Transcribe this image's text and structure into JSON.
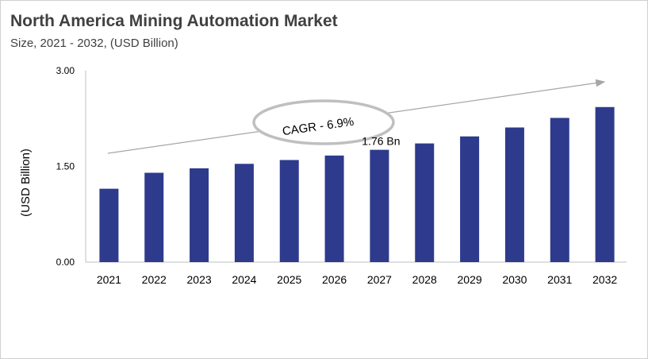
{
  "chart_data": {
    "type": "bar",
    "title": "North America Mining Automation Market",
    "subtitle": "Size, 2021 - 2032, (USD Billion)",
    "ylabel": "(USD Billion)",
    "xlabel": "",
    "ylim": [
      0,
      3.0
    ],
    "yticks": [
      "0.00",
      "1.50",
      "3.00"
    ],
    "categories": [
      "2021",
      "2022",
      "2023",
      "2024",
      "2025",
      "2026",
      "2027",
      "2028",
      "2029",
      "2030",
      "2031",
      "2032"
    ],
    "values": [
      1.15,
      1.4,
      1.47,
      1.54,
      1.6,
      1.67,
      1.76,
      1.86,
      1.97,
      2.11,
      2.26,
      2.43
    ],
    "bar_color": "#2e3a8c",
    "annotations": {
      "cagr": "CAGR - 6.9%",
      "value_label": "1.76 Bn",
      "value_label_category": "2027"
    },
    "grid": false,
    "legend": "none"
  }
}
